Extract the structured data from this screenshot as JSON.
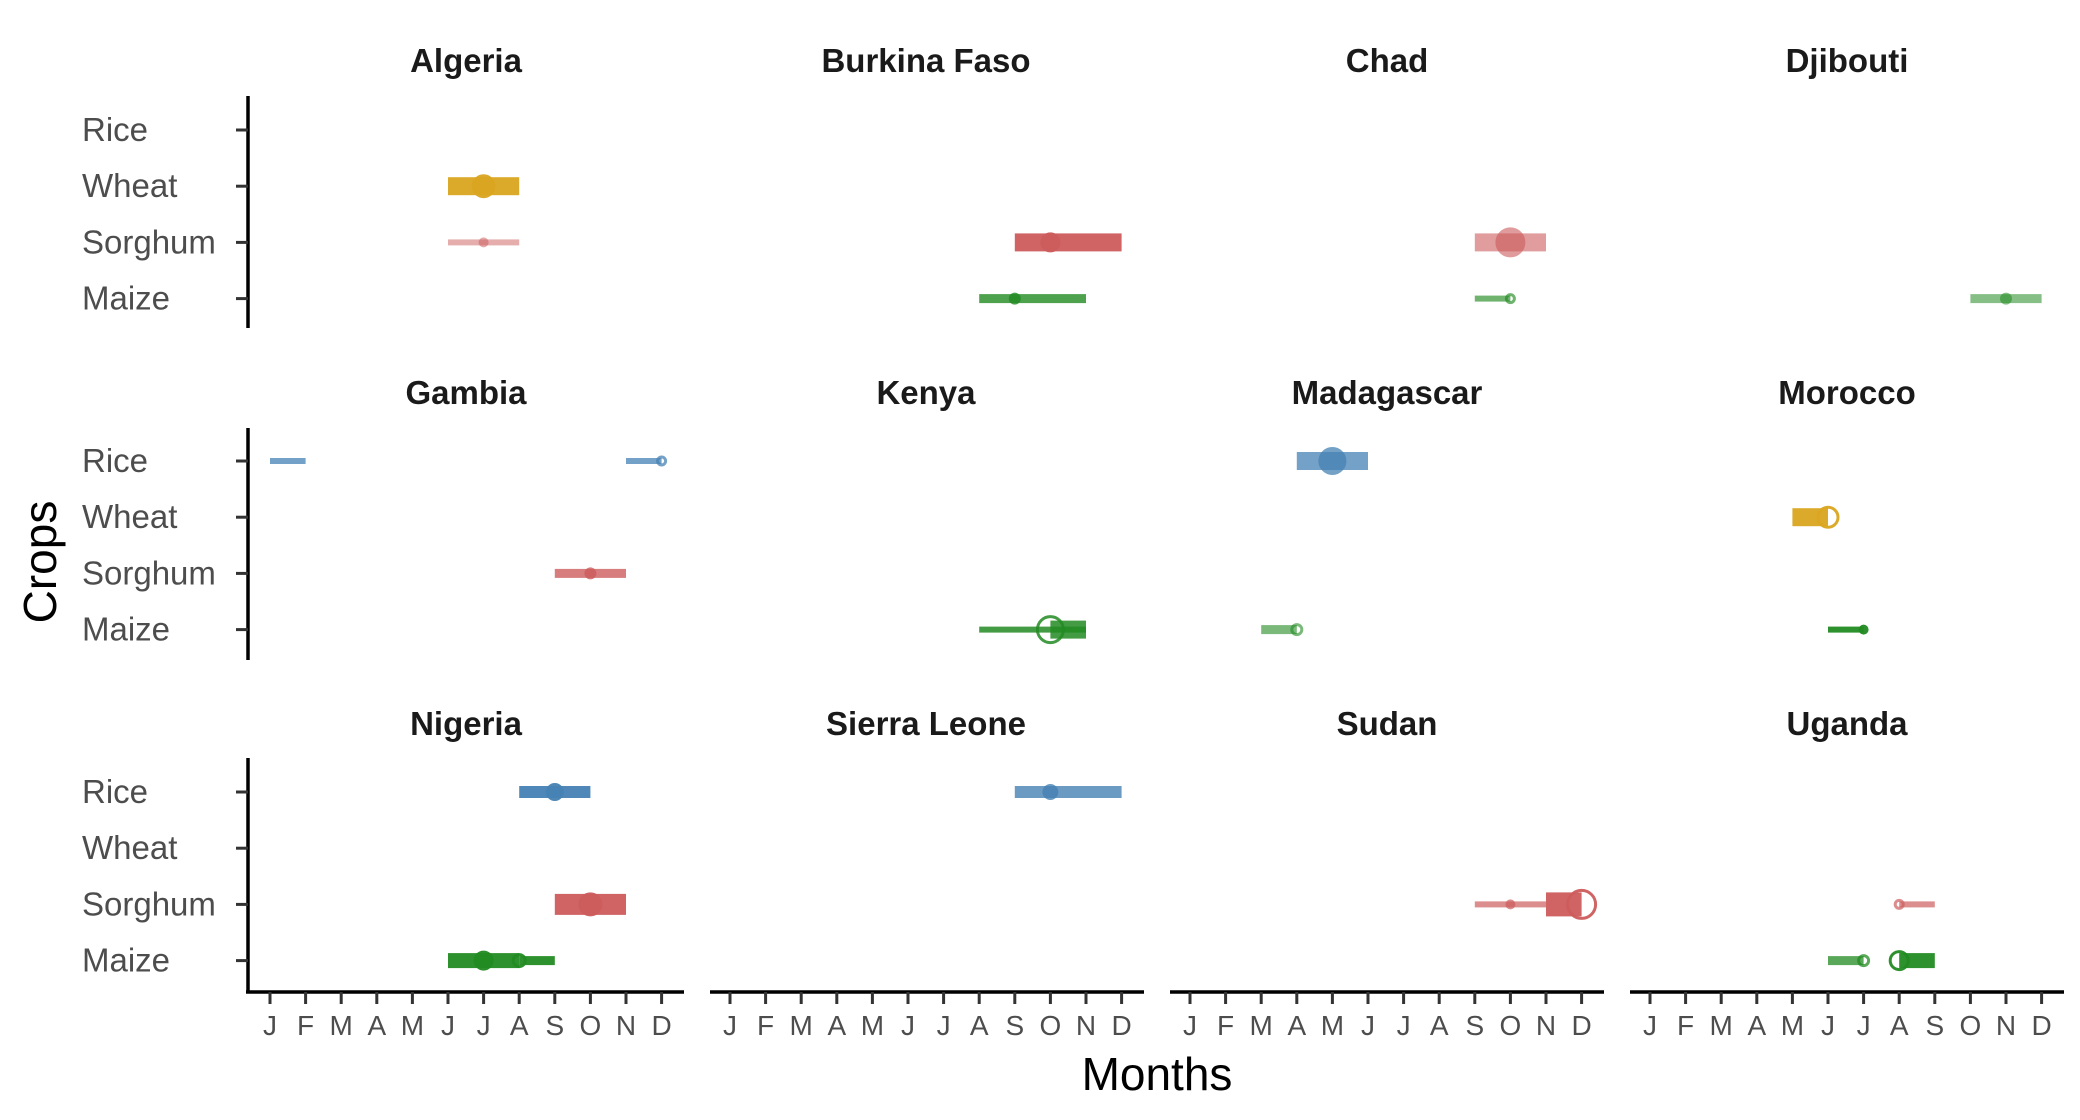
{
  "chart_data": {
    "type": "scatter",
    "xlabel": "Months",
    "ylabel": "Crops",
    "months": [
      "J",
      "F",
      "M",
      "A",
      "M",
      "J",
      "J",
      "A",
      "S",
      "O",
      "N",
      "D"
    ],
    "crops": [
      "Rice",
      "Wheat",
      "Sorghum",
      "Maize"
    ],
    "colors": {
      "Rice": "#4682b4",
      "Wheat": "#daa520",
      "Sorghum": "#cd5c5c",
      "Maize": "#228b22"
    },
    "facet_cols": 4,
    "panels": [
      {
        "country": "Algeria",
        "records": [
          {
            "crop": "Wheat",
            "start": 6,
            "end": 8,
            "peak": 7,
            "width": 3,
            "dot": 11,
            "filled": true,
            "opacity": 0.95
          },
          {
            "crop": "Sorghum",
            "start": 6,
            "end": 8,
            "peak": 7,
            "width": 1,
            "dot": 4,
            "filled": true,
            "opacity": 0.5
          }
        ]
      },
      {
        "country": "Burkina Faso",
        "records": [
          {
            "crop": "Sorghum",
            "start": 9,
            "end": 12,
            "peak": 10,
            "width": 3,
            "dot": 9,
            "filled": true,
            "opacity": 0.95
          },
          {
            "crop": "Maize",
            "start": 8,
            "end": 11,
            "peak": 9,
            "width": 1.5,
            "dot": 5,
            "filled": true,
            "opacity": 0.8
          }
        ]
      },
      {
        "country": "Chad",
        "records": [
          {
            "crop": "Sorghum",
            "start": 9,
            "end": 11,
            "peak": 10,
            "width": 3,
            "dot": 14,
            "filled": true,
            "opacity": 0.6
          },
          {
            "crop": "Maize",
            "start": 9,
            "end": 10,
            "peak": 10,
            "width": 1,
            "dot": 4,
            "filled": false,
            "opacity": 0.65
          }
        ]
      },
      {
        "country": "Djibouti",
        "records": [
          {
            "crop": "Maize",
            "start": 10,
            "end": 12,
            "peak": 11,
            "width": 1.5,
            "dot": 5,
            "filled": true,
            "opacity": 0.55
          }
        ]
      },
      {
        "country": "Gambia",
        "records": [
          {
            "crop": "Rice",
            "start": 1,
            "end": 2,
            "peak": null,
            "width": 1,
            "dot": 0,
            "filled": true,
            "opacity": 0.75
          },
          {
            "crop": "Rice",
            "start": 11,
            "end": 12,
            "peak": 12,
            "width": 1,
            "dot": 4,
            "filled": false,
            "opacity": 0.75
          },
          {
            "crop": "Sorghum",
            "start": 9,
            "end": 11,
            "peak": 10,
            "width": 1.5,
            "dot": 5,
            "filled": true,
            "opacity": 0.8
          }
        ]
      },
      {
        "country": "Kenya",
        "records": [
          {
            "crop": "Maize",
            "start": 8,
            "end": 11,
            "peak": 10,
            "width": 1,
            "dot": 0,
            "filled": true,
            "opacity": 0.85
          },
          {
            "crop": "Maize",
            "start": 10,
            "end": 11,
            "peak": 10,
            "width": 3,
            "dot": 13,
            "filled": false,
            "opacity": 0.85
          }
        ]
      },
      {
        "country": "Madagascar",
        "records": [
          {
            "crop": "Rice",
            "start": 4,
            "end": 6,
            "peak": 5,
            "width": 3,
            "dot": 13,
            "filled": true,
            "opacity": 0.75
          },
          {
            "crop": "Maize",
            "start": 3,
            "end": 4,
            "peak": 4,
            "width": 1.5,
            "dot": 5,
            "filled": false,
            "opacity": 0.6
          }
        ]
      },
      {
        "country": "Morocco",
        "records": [
          {
            "crop": "Wheat",
            "start": 5,
            "end": 6,
            "peak": 6,
            "width": 3,
            "dot": 10,
            "filled": false,
            "opacity": 0.95
          },
          {
            "crop": "Maize",
            "start": 6,
            "end": 7,
            "peak": 7,
            "width": 1,
            "dot": 4,
            "filled": true,
            "opacity": 0.95
          }
        ]
      },
      {
        "country": "Nigeria",
        "records": [
          {
            "crop": "Rice",
            "start": 8,
            "end": 10,
            "peak": 9,
            "width": 2,
            "dot": 8,
            "filled": true,
            "opacity": 0.95
          },
          {
            "crop": "Sorghum",
            "start": 9,
            "end": 11,
            "peak": 10,
            "width": 3.5,
            "dot": 11,
            "filled": true,
            "opacity": 0.95
          },
          {
            "crop": "Maize",
            "start": 6,
            "end": 8,
            "peak": 7,
            "width": 2.5,
            "dot": 9,
            "filled": true,
            "opacity": 0.95
          },
          {
            "crop": "Maize",
            "start": 8,
            "end": 9,
            "peak": 8,
            "width": 1.5,
            "dot": 6,
            "filled": false,
            "opacity": 0.95
          }
        ]
      },
      {
        "country": "Sierra Leone",
        "records": [
          {
            "crop": "Rice",
            "start": 9,
            "end": 12,
            "peak": 10,
            "width": 2,
            "dot": 7,
            "filled": true,
            "opacity": 0.8
          }
        ]
      },
      {
        "country": "Sudan",
        "records": [
          {
            "crop": "Sorghum",
            "start": 9,
            "end": 11,
            "peak": 10,
            "width": 1,
            "dot": 4,
            "filled": true,
            "opacity": 0.7
          },
          {
            "crop": "Sorghum",
            "start": 11,
            "end": 12,
            "peak": 12,
            "width": 4,
            "dot": 14,
            "filled": false,
            "opacity": 0.95
          }
        ]
      },
      {
        "country": "Uganda",
        "records": [
          {
            "crop": "Sorghum",
            "start": 8,
            "end": 9,
            "peak": 8,
            "width": 1,
            "dot": 4,
            "filled": false,
            "opacity": 0.7
          },
          {
            "crop": "Maize",
            "start": 6,
            "end": 7,
            "peak": 7,
            "width": 1.5,
            "dot": 5,
            "filled": false,
            "opacity": 0.75
          },
          {
            "crop": "Maize",
            "start": 8,
            "end": 9,
            "peak": 8,
            "width": 2.5,
            "dot": 9,
            "filled": false,
            "opacity": 0.95
          }
        ]
      }
    ]
  }
}
